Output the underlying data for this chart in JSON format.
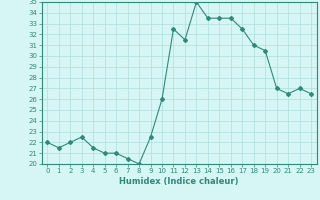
{
  "x": [
    0,
    1,
    2,
    3,
    4,
    5,
    6,
    7,
    8,
    9,
    10,
    11,
    12,
    13,
    14,
    15,
    16,
    17,
    18,
    19,
    20,
    21,
    22,
    23
  ],
  "y": [
    22.0,
    21.5,
    22.0,
    22.5,
    21.5,
    21.0,
    21.0,
    20.5,
    20.0,
    22.5,
    26.0,
    32.5,
    31.5,
    35.0,
    33.5,
    33.5,
    33.5,
    32.5,
    31.0,
    30.5,
    27.0,
    26.5,
    27.0,
    26.5
  ],
  "line_color": "#2e8b7a",
  "marker": "D",
  "markersize": 2,
  "linewidth": 0.8,
  "bg_color": "#d6f5f5",
  "grid_color": "#b0dede",
  "xlabel": "Humidex (Indice chaleur)",
  "xlabel_fontsize": 6,
  "tick_fontsize": 5,
  "ylim": [
    20,
    35
  ],
  "xlim": [
    -0.5,
    23.5
  ],
  "yticks": [
    20,
    21,
    22,
    23,
    24,
    25,
    26,
    27,
    28,
    29,
    30,
    31,
    32,
    33,
    34,
    35
  ],
  "xticks": [
    0,
    1,
    2,
    3,
    4,
    5,
    6,
    7,
    8,
    9,
    10,
    11,
    12,
    13,
    14,
    15,
    16,
    17,
    18,
    19,
    20,
    21,
    22,
    23
  ]
}
